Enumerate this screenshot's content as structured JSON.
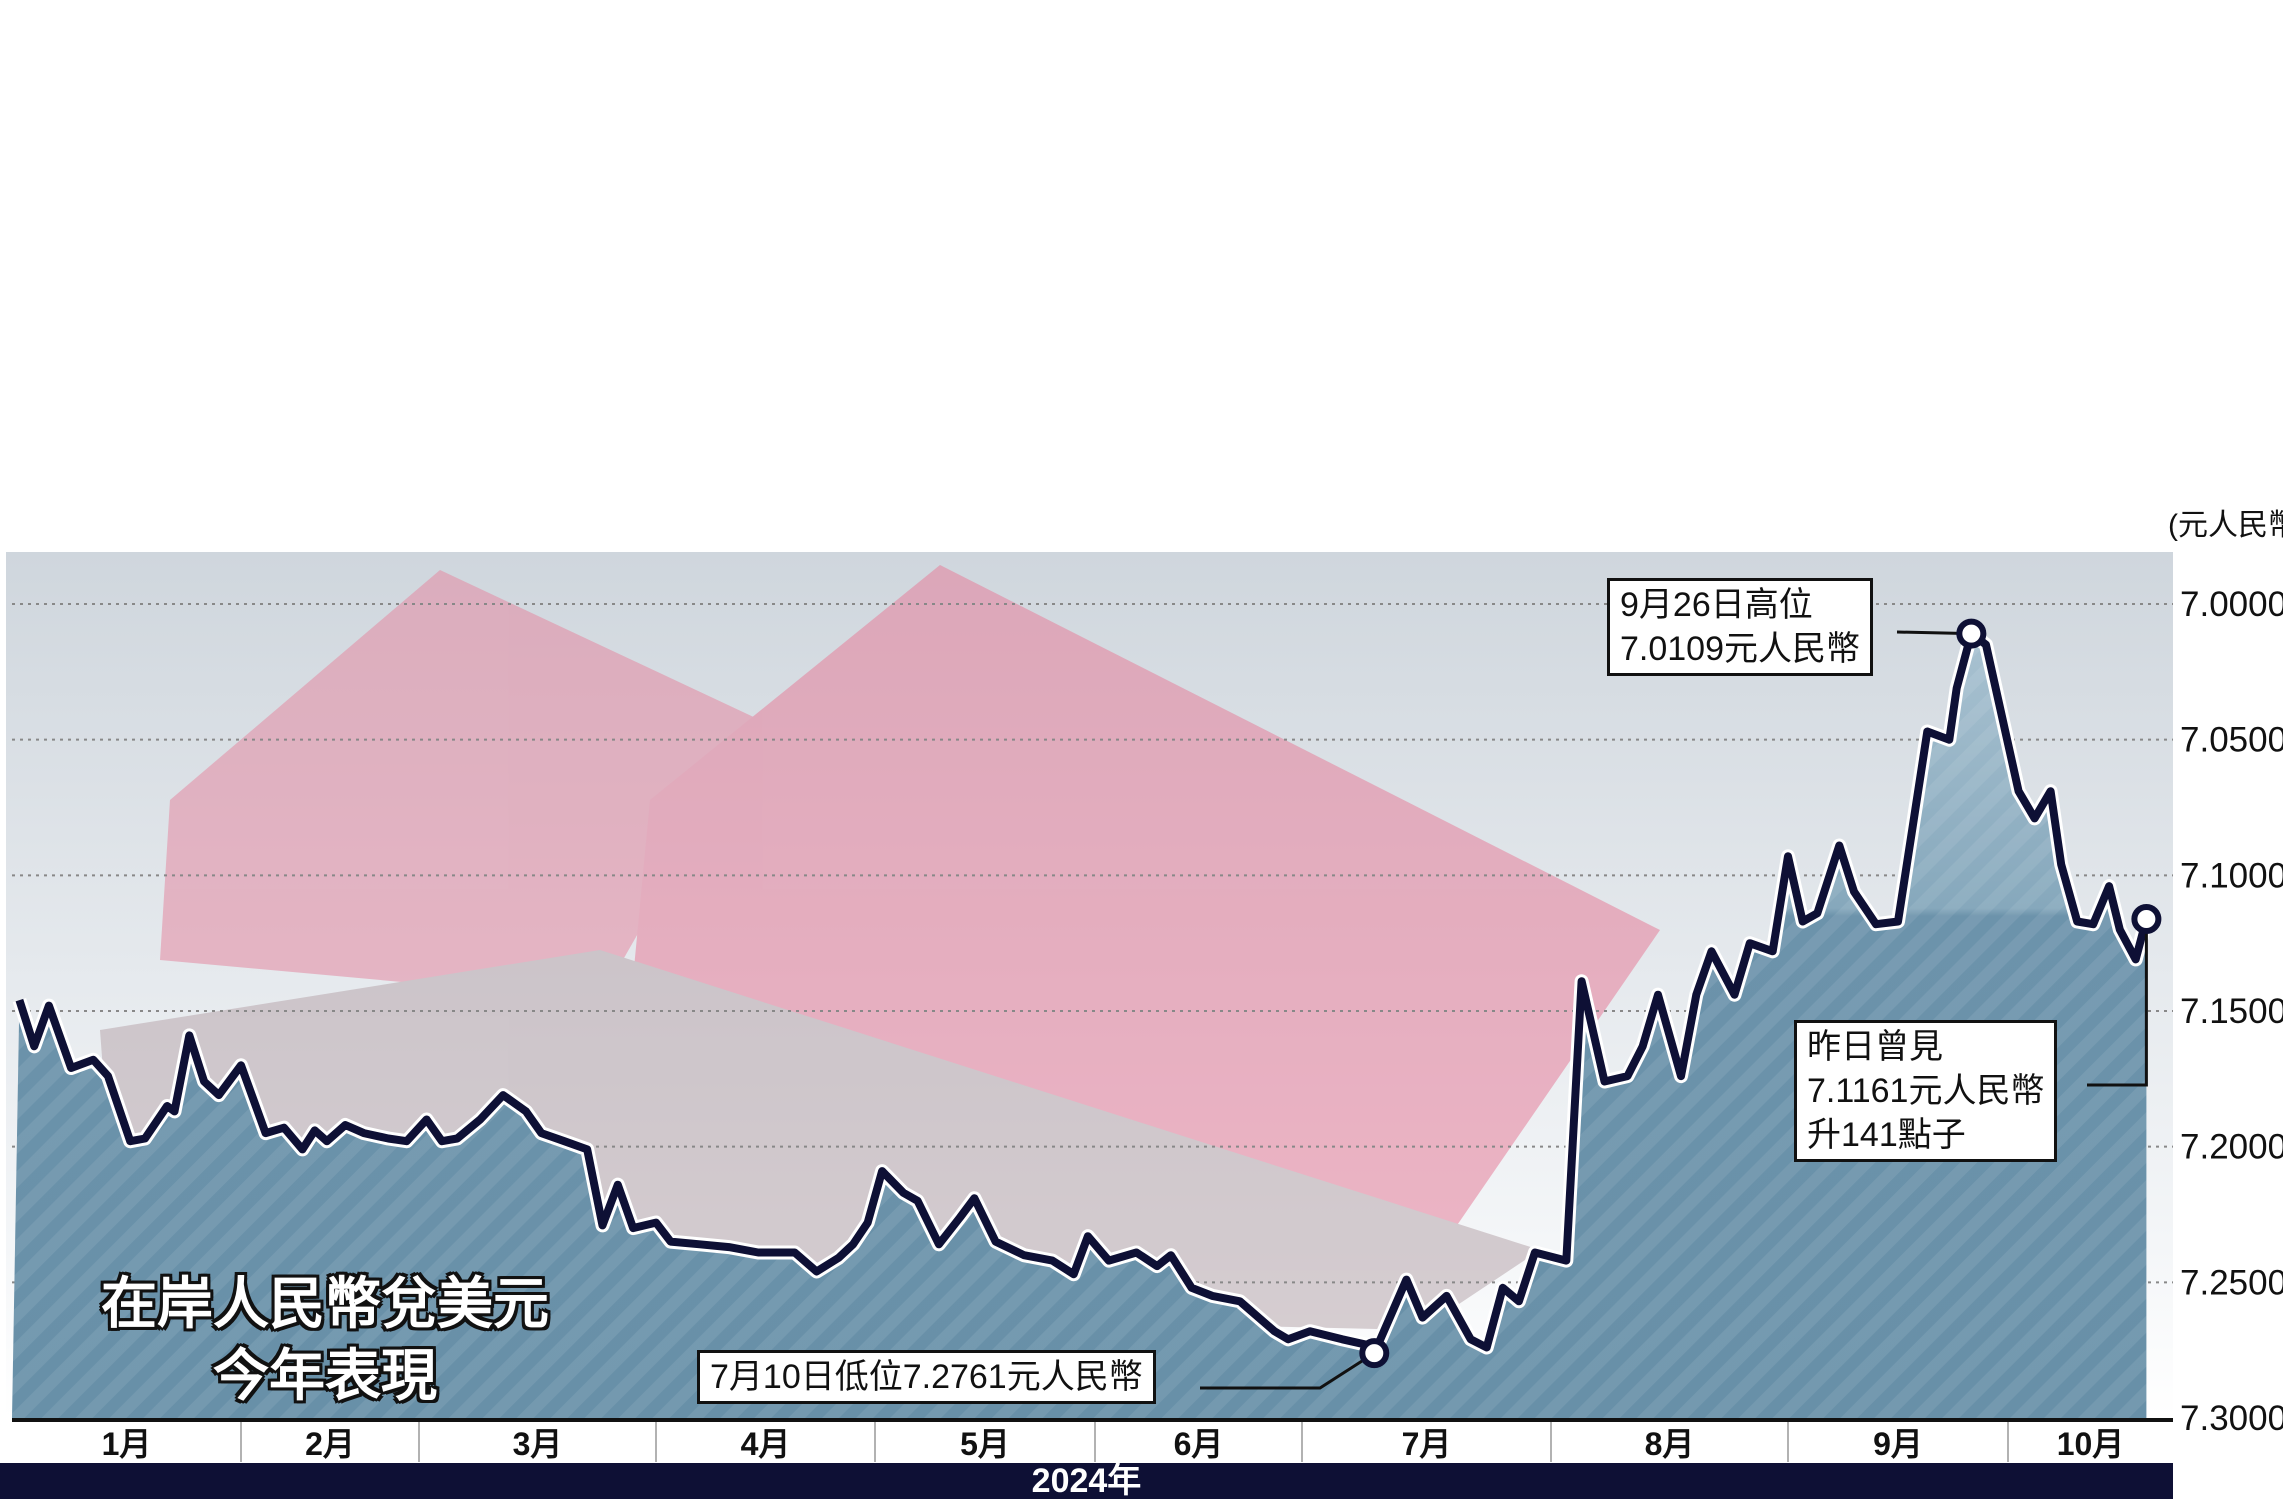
{
  "chart_data": {
    "type": "line",
    "title": "在岸人民幣兌美元",
    "subtitle": "今年表現",
    "unit": "(元人民幣)",
    "xlabel": "2024年",
    "x_tick_labels": [
      "1月",
      "2月",
      "3月",
      "4月",
      "5月",
      "6月",
      "7月",
      "8月",
      "9月",
      "10月"
    ],
    "y_tick_labels": [
      "7.0000",
      "7.0500",
      "7.1000",
      "7.1500",
      "7.2000",
      "7.2500",
      "7.3000"
    ],
    "y_ticks": [
      7.0,
      7.05,
      7.1,
      7.15,
      7.2,
      7.25,
      7.3
    ],
    "ylim": [
      7.3,
      7.0
    ],
    "y_inverted": true,
    "grid": "horizontal dotted",
    "colors": {
      "line": "#0e1035",
      "fill": "#6c93ab",
      "year_bar": "#0e1035"
    },
    "points": [
      [
        "2024-01-02",
        7.146
      ],
      [
        "2024-01-04",
        7.163
      ],
      [
        "2024-01-06",
        7.148
      ],
      [
        "2024-01-09",
        7.171
      ],
      [
        "2024-01-12",
        7.168
      ],
      [
        "2024-01-14",
        7.174
      ],
      [
        "2024-01-17",
        7.198
      ],
      [
        "2024-01-19",
        7.197
      ],
      [
        "2024-01-22",
        7.185
      ],
      [
        "2024-01-23",
        7.187
      ],
      [
        "2024-01-25",
        7.159
      ],
      [
        "2024-01-27",
        7.176
      ],
      [
        "2024-01-29",
        7.181
      ],
      [
        "2024-02-01",
        7.17
      ],
      [
        "2024-02-05",
        7.195
      ],
      [
        "2024-02-08",
        7.193
      ],
      [
        "2024-02-11",
        7.201
      ],
      [
        "2024-02-13",
        7.194
      ],
      [
        "2024-02-15",
        7.198
      ],
      [
        "2024-02-18",
        7.192
      ],
      [
        "2024-02-21",
        7.195
      ],
      [
        "2024-02-25",
        7.197
      ],
      [
        "2024-02-28",
        7.198
      ],
      [
        "2024-03-02",
        7.19
      ],
      [
        "2024-03-04",
        7.198
      ],
      [
        "2024-03-06",
        7.197
      ],
      [
        "2024-03-09",
        7.19
      ],
      [
        "2024-03-12",
        7.181
      ],
      [
        "2024-03-15",
        7.187
      ],
      [
        "2024-03-17",
        7.195
      ],
      [
        "2024-03-20",
        7.198
      ],
      [
        "2024-03-23",
        7.201
      ],
      [
        "2024-03-25",
        7.229
      ],
      [
        "2024-03-27",
        7.214
      ],
      [
        "2024-03-29",
        7.23
      ],
      [
        "2024-04-01",
        7.228
      ],
      [
        "2024-04-03",
        7.235
      ],
      [
        "2024-04-07",
        7.236
      ],
      [
        "2024-04-11",
        7.237
      ],
      [
        "2024-04-15",
        7.239
      ],
      [
        "2024-04-20",
        7.239
      ],
      [
        "2024-04-23",
        7.246
      ],
      [
        "2024-04-26",
        7.241
      ],
      [
        "2024-04-28",
        7.236
      ],
      [
        "2024-04-30",
        7.228
      ],
      [
        "2024-05-02",
        7.209
      ],
      [
        "2024-05-05",
        7.217
      ],
      [
        "2024-05-07",
        7.22
      ],
      [
        "2024-05-10",
        7.236
      ],
      [
        "2024-05-13",
        7.226
      ],
      [
        "2024-05-15",
        7.219
      ],
      [
        "2024-05-18",
        7.235
      ],
      [
        "2024-05-22",
        7.24
      ],
      [
        "2024-05-26",
        7.242
      ],
      [
        "2024-05-29",
        7.247
      ],
      [
        "2024-05-31",
        7.233
      ],
      [
        "2024-06-03",
        7.242
      ],
      [
        "2024-06-07",
        7.239
      ],
      [
        "2024-06-10",
        7.244
      ],
      [
        "2024-06-12",
        7.24
      ],
      [
        "2024-06-15",
        7.252
      ],
      [
        "2024-06-18",
        7.255
      ],
      [
        "2024-06-22",
        7.257
      ],
      [
        "2024-06-27",
        7.268
      ],
      [
        "2024-06-29",
        7.271
      ],
      [
        "2024-07-02",
        7.268
      ],
      [
        "2024-07-06",
        7.271
      ],
      [
        "2024-07-09",
        7.273
      ],
      [
        "2024-07-10",
        7.2761
      ],
      [
        "2024-07-14",
        7.249
      ],
      [
        "2024-07-16",
        7.263
      ],
      [
        "2024-07-19",
        7.255
      ],
      [
        "2024-07-22",
        7.271
      ],
      [
        "2024-07-24",
        7.274
      ],
      [
        "2024-07-26",
        7.252
      ],
      [
        "2024-07-28",
        7.257
      ],
      [
        "2024-07-30",
        7.239
      ],
      [
        "2024-08-03",
        7.242
      ],
      [
        "2024-08-05",
        7.139
      ],
      [
        "2024-08-08",
        7.176
      ],
      [
        "2024-08-11",
        7.174
      ],
      [
        "2024-08-13",
        7.163
      ],
      [
        "2024-08-15",
        7.144
      ],
      [
        "2024-08-18",
        7.174
      ],
      [
        "2024-08-20",
        7.144
      ],
      [
        "2024-08-22",
        7.128
      ],
      [
        "2024-08-25",
        7.144
      ],
      [
        "2024-08-27",
        7.125
      ],
      [
        "2024-08-30",
        7.128
      ],
      [
        "2024-09-01",
        7.093
      ],
      [
        "2024-09-03",
        7.117
      ],
      [
        "2024-09-05",
        7.114
      ],
      [
        "2024-09-08",
        7.089
      ],
      [
        "2024-09-10",
        7.106
      ],
      [
        "2024-09-13",
        7.118
      ],
      [
        "2024-09-16",
        7.117
      ],
      [
        "2024-09-18",
        7.082
      ],
      [
        "2024-09-20",
        7.047
      ],
      [
        "2024-09-23",
        7.05
      ],
      [
        "2024-09-24",
        7.031
      ],
      [
        "2024-09-26",
        7.0109
      ],
      [
        "2024-09-28",
        7.015
      ],
      [
        "2024-10-03",
        7.069
      ],
      [
        "2024-10-06",
        7.079
      ],
      [
        "2024-10-09",
        7.069
      ],
      [
        "2024-10-11",
        7.096
      ],
      [
        "2024-10-14",
        7.117
      ],
      [
        "2024-10-17",
        7.118
      ],
      [
        "2024-10-20",
        7.104
      ],
      [
        "2024-10-22",
        7.12
      ],
      [
        "2024-10-25",
        7.131
      ],
      [
        "2024-10-27",
        7.1161
      ]
    ],
    "annotations": {
      "high": {
        "date": "2024-09-26",
        "value": 7.0109,
        "lines": [
          "9月26日高位",
          "7.0109元人民幣"
        ]
      },
      "low": {
        "date": "2024-07-10",
        "value": 7.2761,
        "lines": [
          "7月10日低位7.2761元人民幣"
        ]
      },
      "latest": {
        "date": "2024-10-27",
        "value": 7.1161,
        "lines": [
          "昨日曾見",
          "7.1161元人民幣",
          "升141點子"
        ]
      }
    }
  }
}
